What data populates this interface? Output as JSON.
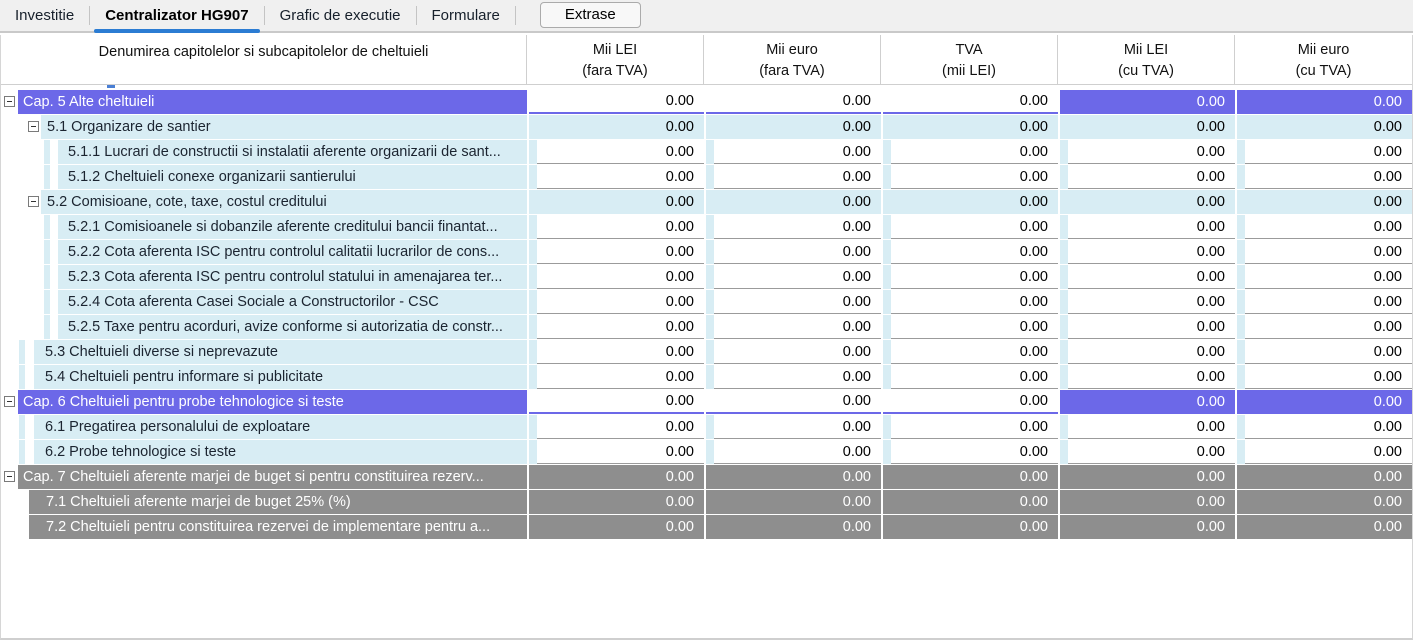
{
  "tabbar": {
    "tabs": [
      {
        "label": "Investitie",
        "active": false
      },
      {
        "label": "Centralizator HG907",
        "active": true
      },
      {
        "label": "Grafic de executie",
        "active": false
      },
      {
        "label": "Formulare",
        "active": false
      }
    ],
    "extrase_button_label": "Extrase"
  },
  "colors": {
    "selection_purple": "#6c68e8",
    "row_light_blue": "#d8edf4",
    "disabled_gray": "#8e8e8e",
    "active_tab_underline": "#2b7cd3"
  },
  "table": {
    "name_column_title": "Denumirea capitolelor si subcapitolelor de cheltuieli",
    "value_columns": [
      {
        "line1": "Mii LEI",
        "line2": "(fara TVA)"
      },
      {
        "line1": "Mii euro",
        "line2": "(fara TVA)"
      },
      {
        "line1": "TVA",
        "line2": "(mii LEI)"
      },
      {
        "line1": "Mii LEI",
        "line2": "(cu TVA)"
      },
      {
        "line1": "Mii euro",
        "line2": "(cu TVA)"
      }
    ],
    "rows": [
      {
        "type": "cap",
        "expand": true,
        "label": "Cap. 5 Alte cheltuieli",
        "values": [
          "0.00",
          "0.00",
          "0.00",
          "0.00",
          "0.00"
        ]
      },
      {
        "type": "group2",
        "expand": true,
        "label": "5.1 Organizare de santier",
        "values": [
          "0.00",
          "0.00",
          "0.00",
          "0.00",
          "0.00"
        ]
      },
      {
        "type": "leaf3",
        "expand": false,
        "label": "5.1.1 Lucrari de constructii si instalatii aferente organizarii de sant...",
        "values": [
          "0.00",
          "0.00",
          "0.00",
          "0.00",
          "0.00"
        ]
      },
      {
        "type": "leaf3",
        "expand": false,
        "label": "5.1.2 Cheltuieli conexe organizarii santierului",
        "values": [
          "0.00",
          "0.00",
          "0.00",
          "0.00",
          "0.00"
        ]
      },
      {
        "type": "group2",
        "expand": true,
        "label": "5.2 Comisioane, cote, taxe, costul creditului",
        "values": [
          "0.00",
          "0.00",
          "0.00",
          "0.00",
          "0.00"
        ]
      },
      {
        "type": "leaf3",
        "expand": false,
        "label": "5.2.1 Comisioanele si dobanzile aferente creditului bancii finantat...",
        "values": [
          "0.00",
          "0.00",
          "0.00",
          "0.00",
          "0.00"
        ]
      },
      {
        "type": "leaf3",
        "expand": false,
        "label": "5.2.2 Cota aferenta ISC pentru controlul calitatii lucrarilor de cons...",
        "values": [
          "0.00",
          "0.00",
          "0.00",
          "0.00",
          "0.00"
        ]
      },
      {
        "type": "leaf3",
        "expand": false,
        "label": "5.2.3 Cota aferenta ISC pentru controlul statului in amenajarea ter...",
        "values": [
          "0.00",
          "0.00",
          "0.00",
          "0.00",
          "0.00"
        ]
      },
      {
        "type": "leaf3",
        "expand": false,
        "label": "5.2.4 Cota aferenta Casei Sociale a Constructorilor - CSC",
        "values": [
          "0.00",
          "0.00",
          "0.00",
          "0.00",
          "0.00"
        ]
      },
      {
        "type": "leaf3",
        "expand": false,
        "label": "5.2.5 Taxe pentru acorduri, avize conforme si autorizatia de constr...",
        "values": [
          "0.00",
          "0.00",
          "0.00",
          "0.00",
          "0.00"
        ]
      },
      {
        "type": "leaf2",
        "expand": false,
        "label": "5.3 Cheltuieli diverse si neprevazute",
        "values": [
          "0.00",
          "0.00",
          "0.00",
          "0.00",
          "0.00"
        ]
      },
      {
        "type": "leaf2",
        "expand": false,
        "label": "5.4 Cheltuieli pentru informare si publicitate",
        "values": [
          "0.00",
          "0.00",
          "0.00",
          "0.00",
          "0.00"
        ]
      },
      {
        "type": "cap",
        "expand": true,
        "label": "Cap. 6 Cheltuieli pentru probe tehnologice si teste",
        "values": [
          "0.00",
          "0.00",
          "0.00",
          "0.00",
          "0.00"
        ]
      },
      {
        "type": "leaf2",
        "expand": false,
        "label": "6.1 Pregatirea personalului de exploatare",
        "values": [
          "0.00",
          "0.00",
          "0.00",
          "0.00",
          "0.00"
        ]
      },
      {
        "type": "leaf2",
        "expand": false,
        "label": "6.2 Probe tehnologice si teste",
        "values": [
          "0.00",
          "0.00",
          "0.00",
          "0.00",
          "0.00"
        ]
      },
      {
        "type": "graycap",
        "expand": true,
        "label": "Cap. 7 Cheltuieli aferente marjei de buget si pentru constituirea rezerv...",
        "values": [
          "0.00",
          "0.00",
          "0.00",
          "0.00",
          "0.00"
        ]
      },
      {
        "type": "gray2",
        "expand": false,
        "label": "7.1 Cheltuieli aferente marjei de buget 25% (%)",
        "values": [
          "0.00",
          "0.00",
          "0.00",
          "0.00",
          "0.00"
        ]
      },
      {
        "type": "gray2",
        "expand": false,
        "label": "7.2 Cheltuieli pentru constituirea rezervei de implementare pentru a...",
        "values": [
          "0.00",
          "0.00",
          "0.00",
          "0.00",
          "0.00"
        ]
      }
    ]
  }
}
